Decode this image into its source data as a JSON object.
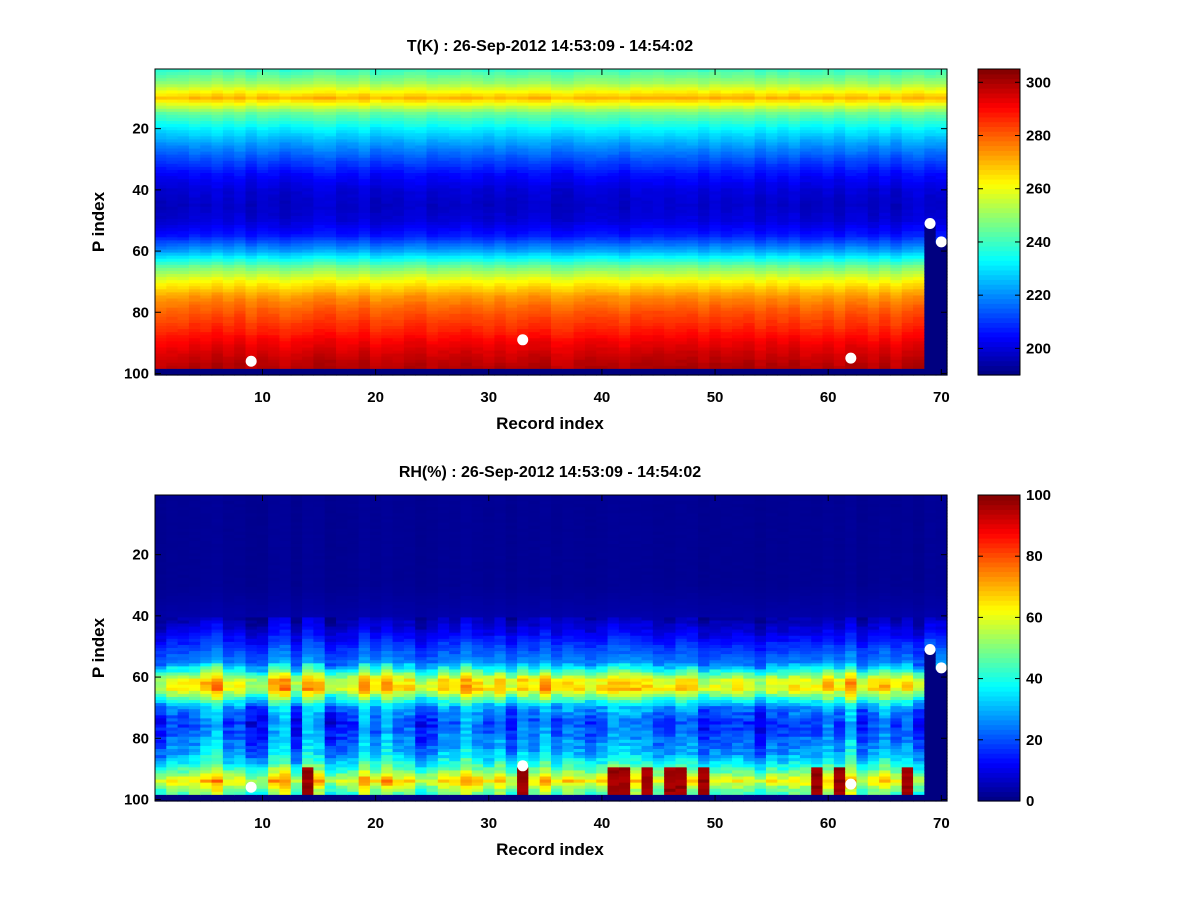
{
  "chart_data": [
    {
      "type": "heatmap",
      "title": "T(K) : 26-Sep-2012 14:53:09 - 14:54:02",
      "xlabel": "Record index",
      "ylabel": "P index",
      "xlim": [
        0.5,
        70.5
      ],
      "ylim": [
        0.5,
        100.5
      ],
      "y_reversed": true,
      "xticks": [
        10,
        20,
        30,
        40,
        50,
        60,
        70
      ],
      "yticks": [
        20,
        40,
        60,
        80,
        100
      ],
      "colorbar": {
        "range": [
          190,
          305
        ],
        "ticks": [
          200,
          220,
          240,
          260,
          280,
          300
        ],
        "colormap": "jet"
      },
      "profile": {
        "p": [
          1,
          5,
          10,
          15,
          20,
          25,
          30,
          35,
          40,
          45,
          50,
          55,
          60,
          65,
          70,
          75,
          80,
          85,
          90,
          95,
          98
        ],
        "value": [
          240,
          250,
          270,
          245,
          232,
          222,
          213,
          205,
          200,
          198,
          200,
          207,
          223,
          245,
          262,
          274,
          281,
          286,
          292,
          297,
          299
        ]
      },
      "last_valid_p": 98,
      "truncated_records": [
        {
          "x": 69,
          "last_valid_p": 51
        },
        {
          "x": 70,
          "last_valid_p": 57
        }
      ],
      "markers": [
        {
          "x": 9,
          "y": 96
        },
        {
          "x": 33,
          "y": 89
        },
        {
          "x": 62,
          "y": 95
        },
        {
          "x": 69,
          "y": 51
        },
        {
          "x": 70,
          "y": 57
        }
      ],
      "marker_color": "#ffffff"
    },
    {
      "type": "heatmap",
      "title": "RH(%) : 26-Sep-2012 14:53:09 - 14:54:02",
      "xlabel": "Record index",
      "ylabel": "P index",
      "xlim": [
        0.5,
        70.5
      ],
      "ylim": [
        0.5,
        100.5
      ],
      "y_reversed": true,
      "xticks": [
        10,
        20,
        30,
        40,
        50,
        60,
        70
      ],
      "yticks": [
        20,
        40,
        60,
        80,
        100
      ],
      "colorbar": {
        "range": [
          0,
          100
        ],
        "ticks": [
          0,
          20,
          40,
          60,
          80,
          100
        ],
        "colormap": "jet"
      },
      "profile": {
        "p": [
          1,
          30,
          40,
          45,
          50,
          55,
          58,
          61,
          64,
          67,
          70,
          75,
          80,
          85,
          88,
          91,
          94,
          96,
          98
        ],
        "value": [
          2,
          2,
          4,
          10,
          18,
          25,
          42,
          62,
          65,
          45,
          28,
          20,
          24,
          30,
          38,
          50,
          65,
          55,
          48
        ]
      },
      "high_records": [
        14,
        33,
        41,
        42,
        44,
        46,
        47,
        49,
        59,
        61,
        67
      ],
      "last_valid_p": 98,
      "truncated_records": [
        {
          "x": 69,
          "last_valid_p": 51
        },
        {
          "x": 70,
          "last_valid_p": 57
        }
      ],
      "markers": [
        {
          "x": 9,
          "y": 96
        },
        {
          "x": 33,
          "y": 89
        },
        {
          "x": 62,
          "y": 95
        },
        {
          "x": 69,
          "y": 51
        },
        {
          "x": 70,
          "y": 57
        }
      ],
      "marker_color": "#ffffff"
    }
  ]
}
